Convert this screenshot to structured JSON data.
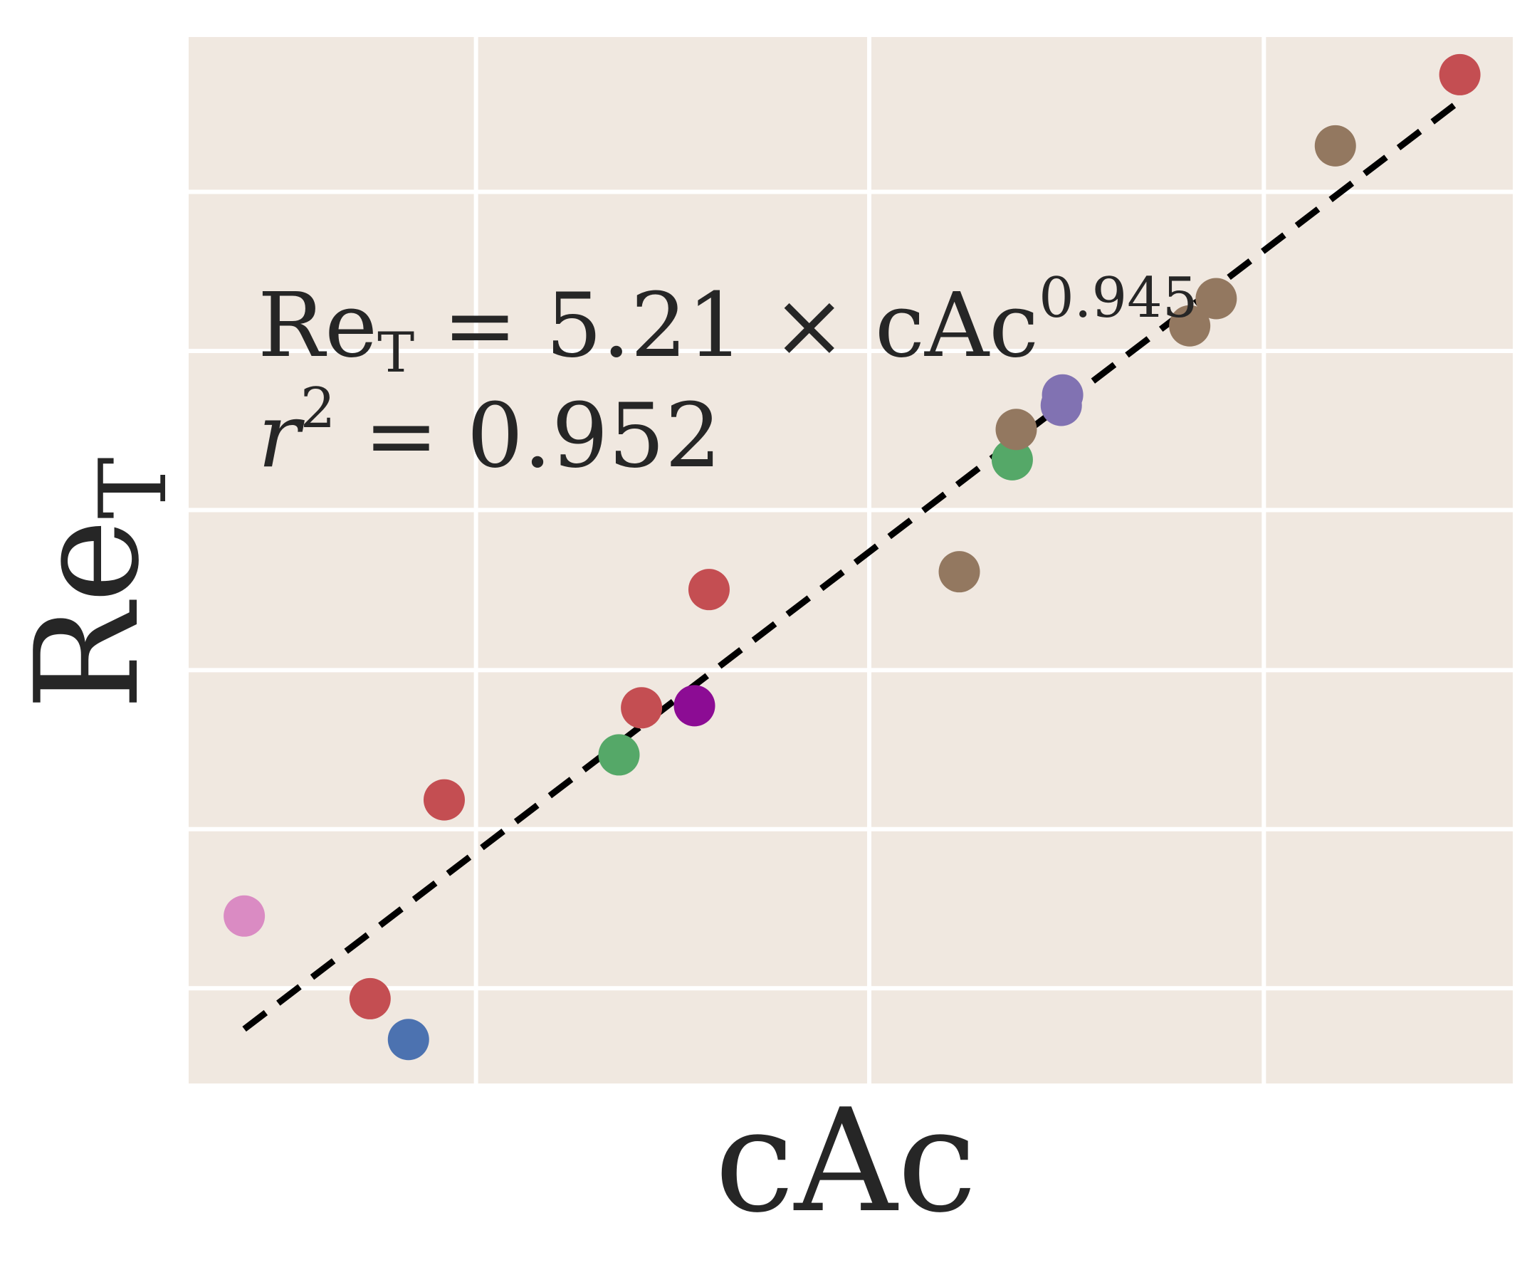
{
  "chart_data": {
    "type": "scatter",
    "title": "",
    "xlabel": "cAc",
    "ylabel_main": "Re",
    "ylabel_sub": "T",
    "grid": true,
    "x_tick_labels_visible": false,
    "y_tick_labels_visible": false,
    "xlim": [
      0.0,
      1.0
    ],
    "ylim": [
      0.0,
      1.0
    ],
    "x_gridlines": [
      0.217,
      0.514,
      0.812
    ],
    "y_gridlines": [
      0.091,
      0.243,
      0.395,
      0.548,
      0.7,
      0.852
    ],
    "points": [
      {
        "x": 0.042,
        "y": 0.16,
        "color": "#DA8BC3"
      },
      {
        "x": 0.137,
        "y": 0.081,
        "color": "#C44E52"
      },
      {
        "x": 0.166,
        "y": 0.042,
        "color": "#4C72B0"
      },
      {
        "x": 0.193,
        "y": 0.271,
        "color": "#C44E52"
      },
      {
        "x": 0.325,
        "y": 0.314,
        "color": "#55A868"
      },
      {
        "x": 0.342,
        "y": 0.359,
        "color": "#C44E52"
      },
      {
        "x": 0.382,
        "y": 0.361,
        "color": "#8C0C94"
      },
      {
        "x": 0.393,
        "y": 0.472,
        "color": "#C44E52"
      },
      {
        "x": 0.582,
        "y": 0.489,
        "color": "#937860"
      },
      {
        "x": 0.622,
        "y": 0.596,
        "color": "#55A868"
      },
      {
        "x": 0.625,
        "y": 0.625,
        "color": "#937860"
      },
      {
        "x": 0.659,
        "y": 0.648,
        "color": "#8172B2"
      },
      {
        "x": 0.66,
        "y": 0.658,
        "color": "#8172B2"
      },
      {
        "x": 0.756,
        "y": 0.724,
        "color": "#937860"
      },
      {
        "x": 0.776,
        "y": 0.75,
        "color": "#937860"
      },
      {
        "x": 0.866,
        "y": 0.896,
        "color": "#937860"
      },
      {
        "x": 0.96,
        "y": 0.964,
        "color": "#C44E52"
      }
    ],
    "fit_line": {
      "x": [
        0.042,
        0.957
      ],
      "y": [
        0.052,
        0.936
      ],
      "color": "#000000",
      "style": "dashed"
    },
    "colors": {
      "plot_background": "#F0E8E0",
      "grid": "#FFFFFF"
    },
    "annotation": {
      "eq_main": "Re",
      "eq_sub": "T",
      "eq_rest": " = 5.21 × cAc",
      "eq_exp": "0.945",
      "r2_var": "r",
      "r2_exp": "2",
      "r2_rest": " = 0.952"
    }
  }
}
